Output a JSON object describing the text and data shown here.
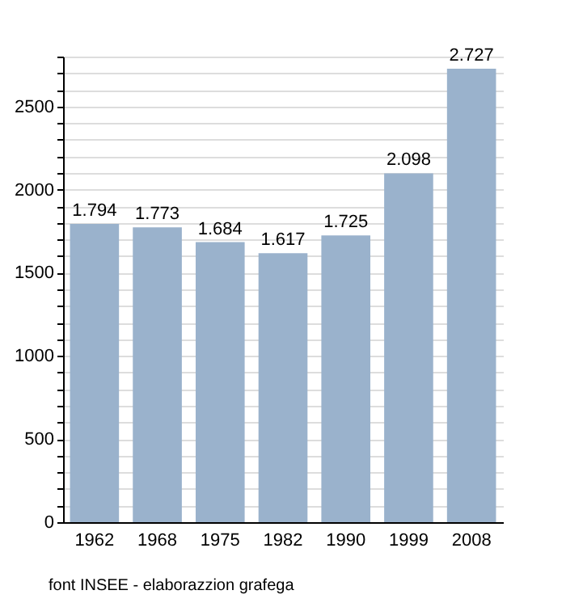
{
  "chart_data": {
    "type": "bar",
    "categories": [
      "1962",
      "1968",
      "1975",
      "1982",
      "1990",
      "1999",
      "2008"
    ],
    "values": [
      1794,
      1773,
      1684,
      1617,
      1725,
      2098,
      2727
    ],
    "value_labels": [
      "1.794",
      "1.773",
      "1.684",
      "1.617",
      "1.725",
      "2.098",
      "2.727"
    ],
    "color": "#9ab2cc",
    "ylim": [
      0,
      2800
    ],
    "yticks": [
      0,
      {
        "value": 100,
        "label": null
      },
      {
        "value": 200,
        "label": null
      },
      {
        "value": 300,
        "label": null
      },
      {
        "value": 400,
        "label": null
      },
      500,
      {
        "value": 600,
        "label": null
      },
      {
        "value": 700,
        "label": null
      },
      {
        "value": 800,
        "label": null
      },
      {
        "value": 900,
        "label": null
      },
      1000,
      {
        "value": 1100,
        "label": null
      },
      {
        "value": 1200,
        "label": null
      },
      {
        "value": 1300,
        "label": null
      },
      {
        "value": 1400,
        "label": null
      },
      1500,
      {
        "value": 1600,
        "label": null
      },
      {
        "value": 1700,
        "label": null
      },
      {
        "value": 1800,
        "label": null
      },
      {
        "value": 1900,
        "label": null
      },
      2000,
      {
        "value": 2100,
        "label": null
      },
      {
        "value": 2200,
        "label": null
      },
      {
        "value": 2300,
        "label": null
      },
      {
        "value": 2400,
        "label": null
      },
      2500,
      {
        "value": 2600,
        "label": null
      },
      {
        "value": 2700,
        "label": null
      },
      {
        "value": 2800,
        "label": null
      }
    ],
    "grid": true,
    "annotations": [
      "font INSEE - elaborazzion grafega"
    ]
  }
}
